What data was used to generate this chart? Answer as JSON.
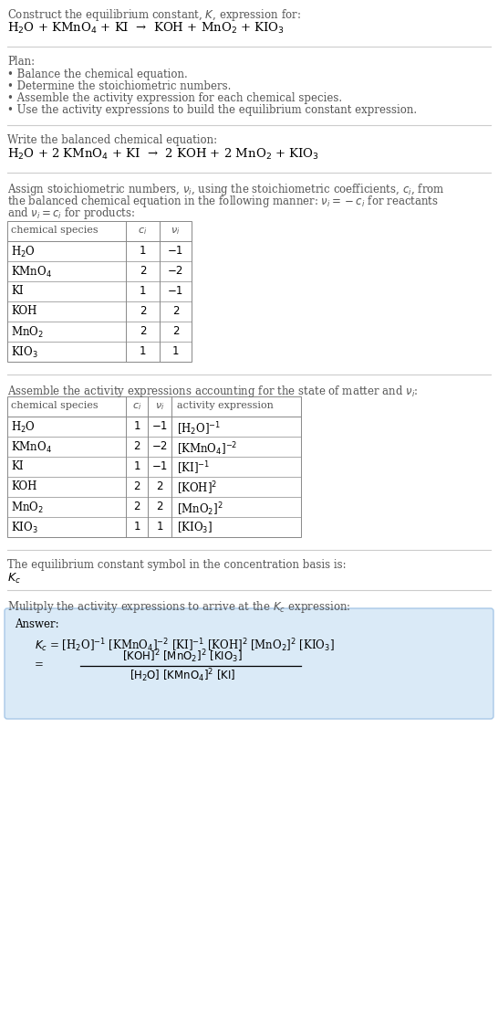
{
  "bg_color": "#ffffff",
  "answer_box_color": "#daeaf7",
  "table_border_color": "#888888",
  "text_color": "#000000",
  "gray_color": "#555555",
  "font_size": 8.5,
  "title_text": "Construct the equilibrium constant, $K$, expression for:",
  "reaction_unbalanced": "H$_2$O + KMnO$_4$ + KI  →  KOH + MnO$_2$ + KIO$_3$",
  "plan_header": "Plan:",
  "plan_items": [
    "• Balance the chemical equation.",
    "• Determine the stoichiometric numbers.",
    "• Assemble the activity expression for each chemical species.",
    "• Use the activity expressions to build the equilibrium constant expression."
  ],
  "balanced_header": "Write the balanced chemical equation:",
  "reaction_balanced": "H$_2$O + 2 KMnO$_4$ + KI  →  2 KOH + 2 MnO$_2$ + KIO$_3$",
  "stoich_header_lines": [
    "Assign stoichiometric numbers, $\\nu_i$, using the stoichiometric coefficients, $c_i$, from",
    "the balanced chemical equation in the following manner: $\\nu_i = -c_i$ for reactants",
    "and $\\nu_i = c_i$ for products:"
  ],
  "table1_headers": [
    "chemical species",
    "$c_i$",
    "$\\nu_i$"
  ],
  "table1_rows": [
    [
      "H$_2$O",
      "1",
      "−1"
    ],
    [
      "KMnO$_4$",
      "2",
      "−2"
    ],
    [
      "KI",
      "1",
      "−1"
    ],
    [
      "KOH",
      "2",
      "2"
    ],
    [
      "MnO$_2$",
      "2",
      "2"
    ],
    [
      "KIO$_3$",
      "1",
      "1"
    ]
  ],
  "activity_header": "Assemble the activity expressions accounting for the state of matter and $\\nu_i$:",
  "table2_headers": [
    "chemical species",
    "$c_i$",
    "$\\nu_i$",
    "activity expression"
  ],
  "table2_rows": [
    [
      "H$_2$O",
      "1",
      "−1",
      "[H$_2$O]$^{-1}$"
    ],
    [
      "KMnO$_4$",
      "2",
      "−2",
      "[KMnO$_4$]$^{-2}$"
    ],
    [
      "KI",
      "1",
      "−1",
      "[KI]$^{-1}$"
    ],
    [
      "KOH",
      "2",
      "2",
      "[KOH]$^2$"
    ],
    [
      "MnO$_2$",
      "2",
      "2",
      "[MnO$_2$]$^2$"
    ],
    [
      "KIO$_3$",
      "1",
      "1",
      "[KIO$_3$]"
    ]
  ],
  "kc_header": "The equilibrium constant symbol in the concentration basis is:",
  "kc_symbol": "$K_c$",
  "multiply_header": "Mulitply the activity expressions to arrive at the $K_c$ expression:",
  "answer_label": "Answer:",
  "answer_line1": "$K_c$ = [H$_2$O]$^{-1}$ [KMnO$_4$]$^{-2}$ [KI]$^{-1}$ [KOH]$^2$ [MnO$_2$]$^2$ [KIO$_3$]",
  "answer_num": "[KOH]$^2$ [MnO$_2$]$^2$ [KIO$_3$]",
  "answer_den": "[H$_2$O] [KMnO$_4$]$^2$ [KI]"
}
